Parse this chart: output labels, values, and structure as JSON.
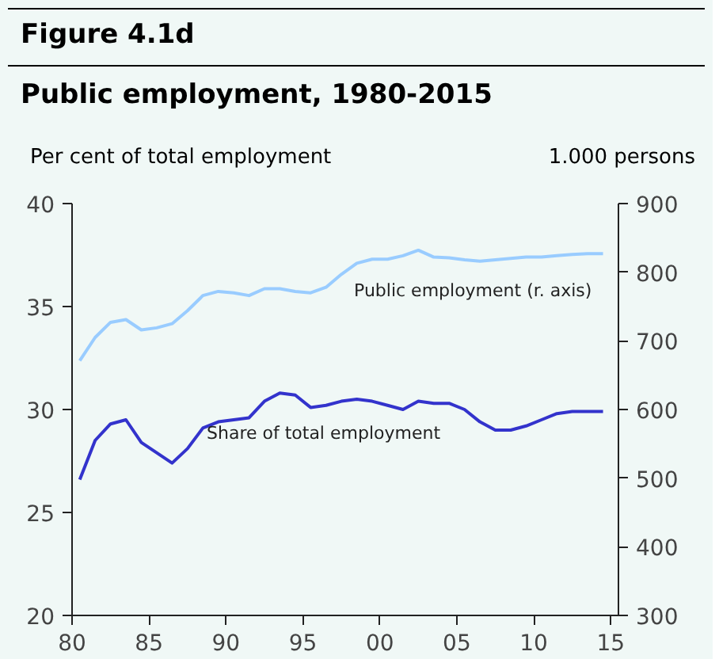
{
  "chart_data": {
    "type": "line",
    "title": "Figure 4.1d",
    "subtitle": "Public employment, 1980-2015",
    "ylabel": "Per cent of total employment",
    "y2label": "1.000 persons",
    "x": [
      1980.5,
      1981.5,
      1982.5,
      1983.5,
      1984.5,
      1985.5,
      1986.5,
      1987.5,
      1988.5,
      1989.5,
      1990.5,
      1991.5,
      1992.5,
      1993.5,
      1994.5,
      1995.5,
      1996.5,
      1997.5,
      1998.5,
      1999.5,
      2000.5,
      2001.5,
      2002.5,
      2003.5,
      2004.5,
      2005.5,
      2006.5,
      2007.5,
      2008.5,
      2009.5,
      2010.5,
      2011.5,
      2012.5,
      2013.5,
      2014.5
    ],
    "series": [
      {
        "color": "#99ccff",
        "axis": "y2",
        "values": [
          671,
          705,
          727,
          731,
          716,
          719,
          725,
          744,
          766,
          772,
          770,
          766,
          776,
          776,
          772,
          770,
          778,
          797,
          813,
          819,
          819,
          824,
          832,
          822,
          821,
          818,
          816,
          818,
          820,
          822,
          822,
          824,
          826,
          827,
          827
        ]
      },
      {
        "color": "#3333cc",
        "values": [
          26.6,
          28.5,
          29.3,
          29.5,
          28.4,
          27.9,
          27.4,
          28.1,
          29.1,
          29.4,
          29.5,
          29.6,
          30.4,
          30.8,
          30.7,
          30.1,
          30.2,
          30.4,
          30.5,
          30.4,
          30.2,
          30.0,
          30.4,
          30.3,
          30.3,
          30.0,
          29.4,
          29.0,
          29.0,
          29.2,
          29.5,
          29.8,
          29.9,
          29.9,
          29.9
        ]
      }
    ],
    "annotations": [
      "Public employment (r. axis)",
      "Share of total employment"
    ],
    "xlim": [
      1980,
      2015.5
    ],
    "xticks": [
      {
        "value": 1980,
        "label": "80"
      },
      {
        "value": 1985,
        "label": "85"
      },
      {
        "value": 1990,
        "label": "90"
      },
      {
        "value": 1995,
        "label": "95"
      },
      {
        "value": 2000,
        "label": "00"
      },
      {
        "value": 2005,
        "label": "05"
      },
      {
        "value": 2010,
        "label": "10"
      },
      {
        "value": 2015,
        "label": "15"
      }
    ],
    "ylim": [
      20,
      40
    ],
    "yticks": [
      20,
      25,
      30,
      35,
      40
    ],
    "y2lim": [
      300,
      900
    ],
    "y2ticks": [
      300,
      400,
      500,
      600,
      700,
      800,
      900
    ],
    "grid": false,
    "marker": "none",
    "line_style": "solid"
  }
}
